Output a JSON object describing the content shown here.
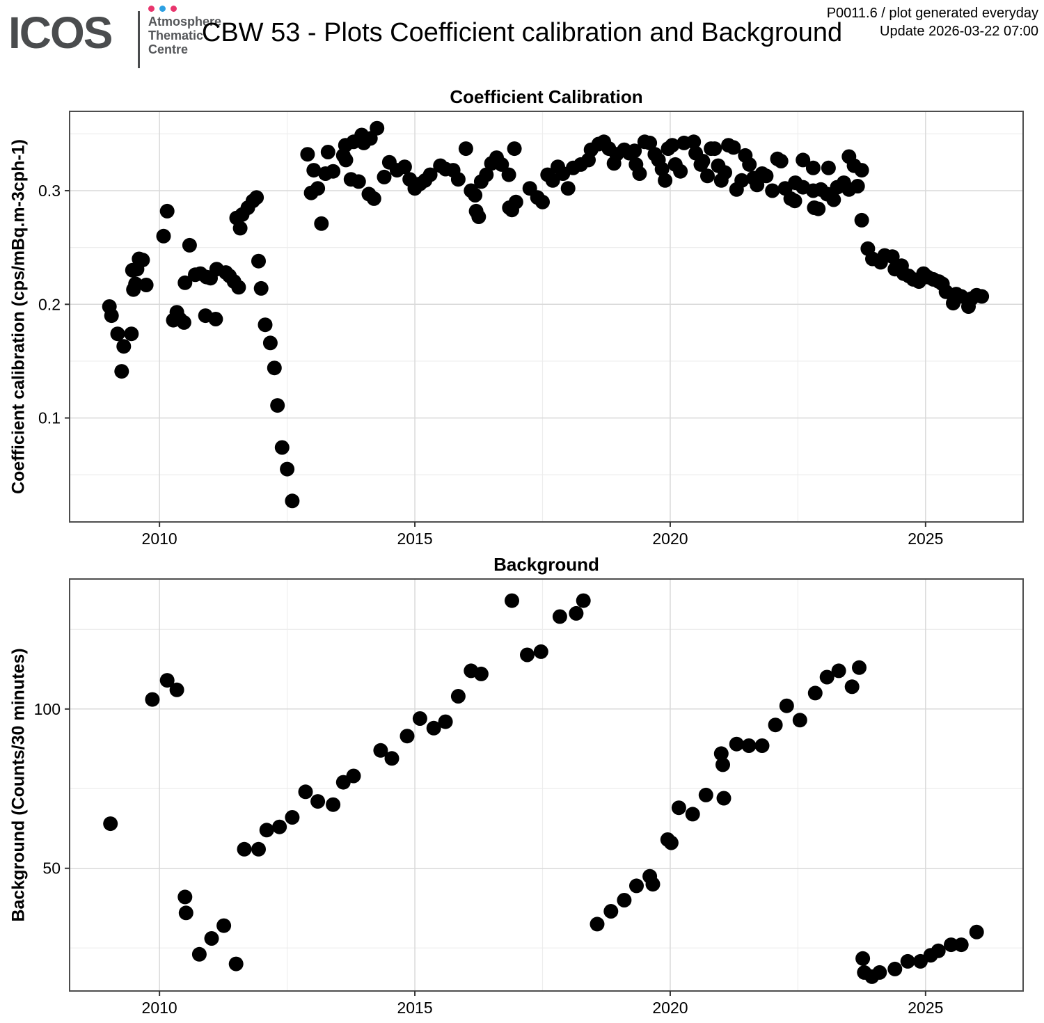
{
  "header": {
    "logo_text": "ICOS",
    "logo_subtitle_lines": [
      "Atmosphere",
      "Thematic",
      "Centre"
    ],
    "logo_dot_colors": [
      "#e8356d",
      "#2da0e2",
      "#e8356d"
    ],
    "logo_color": "#4a4c4e",
    "title": "CBW 53 - Plots Coefficient calibration and Background",
    "info_line1": "P0011.6 / plot generated everyday",
    "info_line2": "Update  2026-03-22 07:00"
  },
  "chart_data": [
    {
      "type": "scatter",
      "title": "Coefficient Calibration",
      "xlabel": "",
      "ylabel": "Coefficient calibration (cps/mBq.m-3cph-1)",
      "xlim": [
        2008.24,
        2026.91
      ],
      "ylim": [
        0.0085,
        0.3698
      ],
      "x_ticks": [
        2010,
        2015,
        2020,
        2025
      ],
      "x_tick_labels": [
        "2010",
        "2015",
        "2020",
        "2025"
      ],
      "x_minor_ticks": [
        2012.5,
        2017.5,
        2022.5
      ],
      "y_ticks": [
        0.1,
        0.2,
        0.3
      ],
      "y_tick_labels": [
        "0.1",
        "0.2",
        "0.3"
      ],
      "y_minor_ticks": [
        0.05,
        0.15,
        0.25,
        0.35
      ],
      "grid": true,
      "legend": false,
      "point_color": "#000000",
      "point_radius": 10.5,
      "points": [
        [
          2009.02,
          0.198
        ],
        [
          2009.06,
          0.19
        ],
        [
          2009.18,
          0.174
        ],
        [
          2009.45,
          0.174
        ],
        [
          2009.3,
          0.163
        ],
        [
          2009.26,
          0.141
        ],
        [
          2009.6,
          0.24
        ],
        [
          2009.67,
          0.239
        ],
        [
          2009.56,
          0.231
        ],
        [
          2009.47,
          0.23
        ],
        [
          2009.53,
          0.218
        ],
        [
          2009.74,
          0.217
        ],
        [
          2009.49,
          0.213
        ],
        [
          2010.08,
          0.26
        ],
        [
          2010.15,
          0.282
        ],
        [
          2010.59,
          0.252
        ],
        [
          2010.27,
          0.186
        ],
        [
          2010.34,
          0.193
        ],
        [
          2010.4,
          0.187
        ],
        [
          2010.48,
          0.184
        ],
        [
          2010.9,
          0.19
        ],
        [
          2011.1,
          0.187
        ],
        [
          2010.5,
          0.219
        ],
        [
          2010.7,
          0.226
        ],
        [
          2010.8,
          0.227
        ],
        [
          2010.92,
          0.224
        ],
        [
          2011.0,
          0.223
        ],
        [
          2011.12,
          0.231
        ],
        [
          2011.3,
          0.228
        ],
        [
          2011.37,
          0.225
        ],
        [
          2011.46,
          0.22
        ],
        [
          2011.55,
          0.215
        ],
        [
          2011.51,
          0.276
        ],
        [
          2011.58,
          0.267
        ],
        [
          2011.62,
          0.279
        ],
        [
          2011.73,
          0.285
        ],
        [
          2011.83,
          0.291
        ],
        [
          2011.9,
          0.294
        ],
        [
          2011.94,
          0.238
        ],
        [
          2011.99,
          0.214
        ],
        [
          2012.07,
          0.182
        ],
        [
          2012.17,
          0.166
        ],
        [
          2012.25,
          0.144
        ],
        [
          2012.31,
          0.111
        ],
        [
          2012.4,
          0.074
        ],
        [
          2012.5,
          0.055
        ],
        [
          2012.6,
          0.027
        ],
        [
          2012.9,
          0.332
        ],
        [
          2012.97,
          0.298
        ],
        [
          2013.02,
          0.318
        ],
        [
          2013.1,
          0.302
        ],
        [
          2013.17,
          0.271
        ],
        [
          2013.25,
          0.315
        ],
        [
          2013.3,
          0.334
        ],
        [
          2013.4,
          0.317
        ],
        [
          2013.6,
          0.331
        ],
        [
          2013.64,
          0.34
        ],
        [
          2013.65,
          0.327
        ],
        [
          2013.75,
          0.31
        ],
        [
          2013.8,
          0.343
        ],
        [
          2013.9,
          0.308
        ],
        [
          2013.96,
          0.349
        ],
        [
          2014.0,
          0.342
        ],
        [
          2014.1,
          0.297
        ],
        [
          2014.13,
          0.346
        ],
        [
          2014.2,
          0.293
        ],
        [
          2014.26,
          0.355
        ],
        [
          2014.4,
          0.312
        ],
        [
          2014.5,
          0.325
        ],
        [
          2014.65,
          0.318
        ],
        [
          2014.8,
          0.321
        ],
        [
          2014.9,
          0.31
        ],
        [
          2015.0,
          0.302
        ],
        [
          2015.1,
          0.306
        ],
        [
          2015.2,
          0.309
        ],
        [
          2015.3,
          0.314
        ],
        [
          2015.5,
          0.322
        ],
        [
          2015.6,
          0.319
        ],
        [
          2015.75,
          0.318
        ],
        [
          2015.85,
          0.31
        ],
        [
          2016.0,
          0.337
        ],
        [
          2016.1,
          0.3
        ],
        [
          2016.18,
          0.296
        ],
        [
          2016.2,
          0.282
        ],
        [
          2016.25,
          0.277
        ],
        [
          2016.3,
          0.308
        ],
        [
          2016.4,
          0.314
        ],
        [
          2016.5,
          0.324
        ],
        [
          2016.6,
          0.329
        ],
        [
          2016.7,
          0.323
        ],
        [
          2016.84,
          0.314
        ],
        [
          2016.85,
          0.285
        ],
        [
          2016.9,
          0.283
        ],
        [
          2016.95,
          0.337
        ],
        [
          2016.98,
          0.29
        ],
        [
          2017.25,
          0.302
        ],
        [
          2017.4,
          0.294
        ],
        [
          2017.5,
          0.29
        ],
        [
          2017.6,
          0.314
        ],
        [
          2017.7,
          0.309
        ],
        [
          2017.8,
          0.321
        ],
        [
          2017.9,
          0.315
        ],
        [
          2018.0,
          0.302
        ],
        [
          2018.1,
          0.32
        ],
        [
          2018.25,
          0.323
        ],
        [
          2018.4,
          0.327
        ],
        [
          2018.45,
          0.336
        ],
        [
          2018.6,
          0.341
        ],
        [
          2018.7,
          0.343
        ],
        [
          2018.8,
          0.337
        ],
        [
          2018.9,
          0.324
        ],
        [
          2018.95,
          0.332
        ],
        [
          2019.1,
          0.336
        ],
        [
          2019.2,
          0.333
        ],
        [
          2019.3,
          0.335
        ],
        [
          2019.33,
          0.323
        ],
        [
          2019.4,
          0.315
        ],
        [
          2019.5,
          0.343
        ],
        [
          2019.6,
          0.342
        ],
        [
          2019.7,
          0.332
        ],
        [
          2019.77,
          0.327
        ],
        [
          2019.84,
          0.319
        ],
        [
          2019.9,
          0.309
        ],
        [
          2019.96,
          0.337
        ],
        [
          2020.04,
          0.34
        ],
        [
          2020.1,
          0.323
        ],
        [
          2020.2,
          0.317
        ],
        [
          2020.27,
          0.342
        ],
        [
          2020.46,
          0.343
        ],
        [
          2020.5,
          0.333
        ],
        [
          2020.6,
          0.323
        ],
        [
          2020.64,
          0.326
        ],
        [
          2020.73,
          0.313
        ],
        [
          2020.8,
          0.337
        ],
        [
          2020.87,
          0.337
        ],
        [
          2020.94,
          0.322
        ],
        [
          2021.0,
          0.309
        ],
        [
          2021.07,
          0.316
        ],
        [
          2021.14,
          0.34
        ],
        [
          2021.24,
          0.338
        ],
        [
          2021.3,
          0.301
        ],
        [
          2021.4,
          0.309
        ],
        [
          2021.47,
          0.331
        ],
        [
          2021.55,
          0.323
        ],
        [
          2021.63,
          0.311
        ],
        [
          2021.7,
          0.305
        ],
        [
          2021.8,
          0.315
        ],
        [
          2021.88,
          0.313
        ],
        [
          2022.0,
          0.3
        ],
        [
          2022.1,
          0.328
        ],
        [
          2022.17,
          0.326
        ],
        [
          2022.25,
          0.302
        ],
        [
          2022.36,
          0.293
        ],
        [
          2022.44,
          0.291
        ],
        [
          2022.45,
          0.307
        ],
        [
          2022.6,
          0.327
        ],
        [
          2022.6,
          0.303
        ],
        [
          2022.8,
          0.32
        ],
        [
          2022.8,
          0.3
        ],
        [
          2022.82,
          0.285
        ],
        [
          2022.9,
          0.284
        ],
        [
          2022.95,
          0.301
        ],
        [
          2023.07,
          0.297
        ],
        [
          2023.1,
          0.32
        ],
        [
          2023.2,
          0.292
        ],
        [
          2023.27,
          0.303
        ],
        [
          2023.4,
          0.307
        ],
        [
          2023.5,
          0.33
        ],
        [
          2023.5,
          0.301
        ],
        [
          2023.6,
          0.322
        ],
        [
          2023.67,
          0.304
        ],
        [
          2023.75,
          0.318
        ],
        [
          2023.75,
          0.274
        ],
        [
          2023.87,
          0.249
        ],
        [
          2023.96,
          0.24
        ],
        [
          2024.12,
          0.237
        ],
        [
          2024.2,
          0.243
        ],
        [
          2024.35,
          0.242
        ],
        [
          2024.4,
          0.231
        ],
        [
          2024.53,
          0.234
        ],
        [
          2024.57,
          0.227
        ],
        [
          2024.67,
          0.225
        ],
        [
          2024.76,
          0.222
        ],
        [
          2024.87,
          0.22
        ],
        [
          2024.96,
          0.227
        ],
        [
          2025.04,
          0.224
        ],
        [
          2025.15,
          0.222
        ],
        [
          2025.26,
          0.22
        ],
        [
          2025.33,
          0.218
        ],
        [
          2025.4,
          0.211
        ],
        [
          2025.54,
          0.201
        ],
        [
          2025.6,
          0.209
        ],
        [
          2025.7,
          0.207
        ],
        [
          2025.84,
          0.198
        ],
        [
          2025.9,
          0.205
        ],
        [
          2026.0,
          0.208
        ],
        [
          2026.1,
          0.207
        ]
      ]
    },
    {
      "type": "scatter",
      "title": "Background",
      "xlabel": "",
      "ylabel": "Background (Counts/30 minutes)",
      "xlim": [
        2008.24,
        2026.91
      ],
      "ylim": [
        11.5,
        140.8
      ],
      "x_ticks": [
        2010,
        2015,
        2020,
        2025
      ],
      "x_tick_labels": [
        "2010",
        "2015",
        "2020",
        "2025"
      ],
      "x_minor_ticks": [
        2012.5,
        2017.5,
        2022.5
      ],
      "y_ticks": [
        50,
        100
      ],
      "y_tick_labels": [
        "50",
        "100"
      ],
      "y_minor_ticks": [
        25,
        75,
        125
      ],
      "grid": true,
      "legend": false,
      "point_color": "#000000",
      "point_radius": 10.5,
      "points": [
        [
          2009.04,
          64
        ],
        [
          2009.86,
          103
        ],
        [
          2010.15,
          109
        ],
        [
          2010.34,
          106
        ],
        [
          2010.5,
          41
        ],
        [
          2010.52,
          36
        ],
        [
          2010.78,
          23
        ],
        [
          2011.02,
          28
        ],
        [
          2011.26,
          32
        ],
        [
          2011.5,
          20
        ],
        [
          2011.66,
          56
        ],
        [
          2011.94,
          56
        ],
        [
          2012.1,
          62
        ],
        [
          2012.35,
          63
        ],
        [
          2012.6,
          66
        ],
        [
          2012.86,
          74
        ],
        [
          2013.1,
          71
        ],
        [
          2013.4,
          70
        ],
        [
          2013.6,
          77
        ],
        [
          2013.8,
          79
        ],
        [
          2014.33,
          87
        ],
        [
          2014.55,
          84.5
        ],
        [
          2014.85,
          91.5
        ],
        [
          2015.1,
          97
        ],
        [
          2015.37,
          94
        ],
        [
          2015.6,
          96
        ],
        [
          2015.85,
          104
        ],
        [
          2016.1,
          112
        ],
        [
          2016.3,
          111
        ],
        [
          2016.9,
          134
        ],
        [
          2017.2,
          117
        ],
        [
          2017.47,
          118
        ],
        [
          2017.84,
          129
        ],
        [
          2018.16,
          130
        ],
        [
          2018.3,
          134
        ],
        [
          2018.57,
          32.5
        ],
        [
          2018.84,
          36.5
        ],
        [
          2019.1,
          40
        ],
        [
          2019.34,
          44.5
        ],
        [
          2019.6,
          47.5
        ],
        [
          2019.66,
          45
        ],
        [
          2019.95,
          59
        ],
        [
          2020.02,
          58
        ],
        [
          2020.17,
          69
        ],
        [
          2020.44,
          67
        ],
        [
          2020.7,
          73
        ],
        [
          2021.05,
          72
        ],
        [
          2021.0,
          86
        ],
        [
          2021.03,
          82.5
        ],
        [
          2021.3,
          89
        ],
        [
          2021.54,
          88.5
        ],
        [
          2021.8,
          88.5
        ],
        [
          2022.06,
          95
        ],
        [
          2022.28,
          101
        ],
        [
          2022.54,
          96.5
        ],
        [
          2022.84,
          105
        ],
        [
          2023.07,
          110
        ],
        [
          2023.3,
          112
        ],
        [
          2023.56,
          107
        ],
        [
          2023.7,
          113
        ],
        [
          2023.77,
          21.7
        ],
        [
          2023.8,
          17.3
        ],
        [
          2023.95,
          16.0
        ],
        [
          2024.1,
          17.3
        ],
        [
          2024.4,
          18.4
        ],
        [
          2024.65,
          20.8
        ],
        [
          2024.9,
          20.8
        ],
        [
          2025.1,
          22.7
        ],
        [
          2025.25,
          24.1
        ],
        [
          2025.5,
          26.0
        ],
        [
          2025.7,
          26.0
        ],
        [
          2026.0,
          30.0
        ]
      ]
    }
  ],
  "style": {
    "panel_border_color": "#4d4d4d",
    "grid_major_color": "#d9d9d9",
    "grid_minor_color": "#ededed",
    "tick_color": "#333333",
    "tick_label_color": "#000000"
  }
}
